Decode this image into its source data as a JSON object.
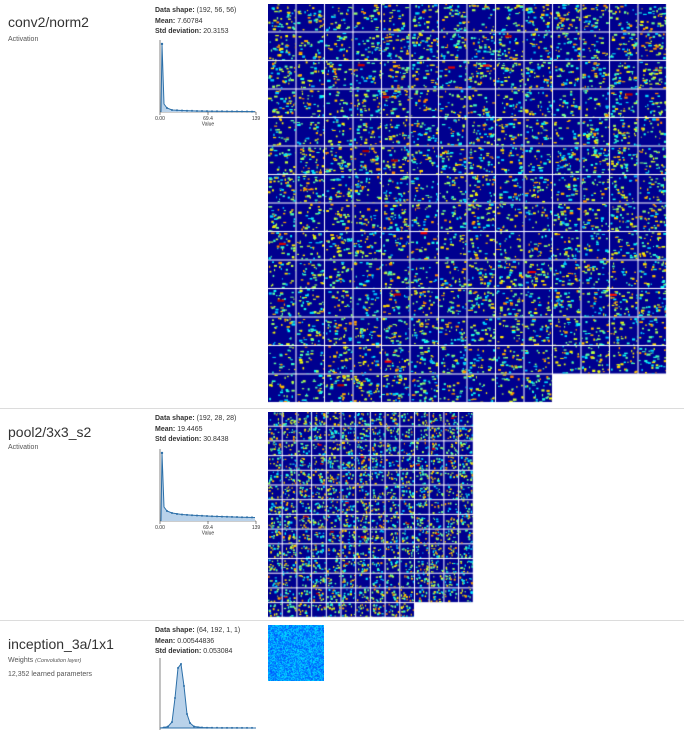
{
  "layers": [
    {
      "name": "conv2/norm2",
      "type": "Activation",
      "stats": {
        "shape_label": "Data shape:",
        "shape": "(192, 56, 56)",
        "mean_label": "Mean:",
        "mean": "7.60784",
        "std_label": "Std deviation:",
        "std": "20.3153"
      },
      "histogram": {
        "x_ticks": [
          "0.00",
          "69.4",
          "139"
        ],
        "x_label": "Value"
      }
    },
    {
      "name": "pool2/3x3_s2",
      "type": "Activation",
      "stats": {
        "shape_label": "Data shape:",
        "shape": "(192, 28, 28)",
        "mean_label": "Mean:",
        "mean": "19.4465",
        "std_label": "Std deviation:",
        "std": "30.8438"
      },
      "histogram": {
        "x_ticks": [
          "0.00",
          "69.4",
          "139"
        ],
        "x_label": "Value"
      }
    },
    {
      "name": "inception_3a/1x1",
      "type": "Weights",
      "type_note": "(Convolution layer)",
      "params": "12,352 learned parameters",
      "stats": {
        "shape_label": "Data shape:",
        "shape": "(64, 192, 1, 1)",
        "mean_label": "Mean:",
        "mean": "0.00544836",
        "std_label": "Std deviation:",
        "std": "0.053084"
      }
    }
  ],
  "colors": {
    "heatmap_bg": "#00008f",
    "hist_line": "#2c6fa8",
    "hist_fill": "#b9d2ea"
  }
}
